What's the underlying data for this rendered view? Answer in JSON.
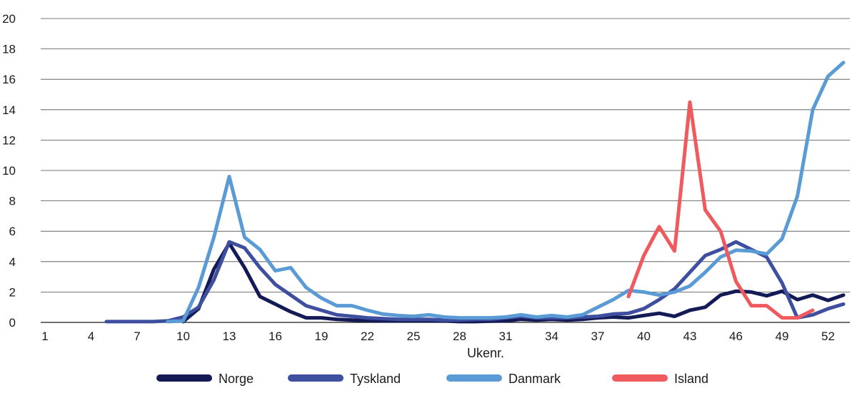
{
  "chart_data": {
    "type": "line",
    "title": "",
    "xlabel": "Ukenr.",
    "ylabel": "",
    "xlim": [
      1,
      53
    ],
    "ylim": [
      0,
      20
    ],
    "x_ticks": [
      "1",
      "4",
      "7",
      "10",
      "13",
      "16",
      "19",
      "22",
      "25",
      "28",
      "31",
      "34",
      "37",
      "40",
      "43",
      "46",
      "49",
      "52"
    ],
    "y_ticks": [
      "0",
      "2",
      "4",
      "6",
      "8",
      "10",
      "12",
      "14",
      "16",
      "18",
      "20"
    ],
    "grid": "horizontal",
    "legend_position": "bottom",
    "series": [
      {
        "name": "Norge",
        "color": "#141a55",
        "points": [
          [
            10,
            0.05
          ],
          [
            11,
            0.9
          ],
          [
            12,
            3.5
          ],
          [
            13,
            5.2
          ],
          [
            14,
            3.6
          ],
          [
            15,
            1.7
          ],
          [
            16,
            1.2
          ],
          [
            17,
            0.7
          ],
          [
            18,
            0.3
          ],
          [
            19,
            0.3
          ],
          [
            20,
            0.2
          ],
          [
            21,
            0.15
          ],
          [
            22,
            0.12
          ],
          [
            23,
            0.1
          ],
          [
            24,
            0.1
          ],
          [
            25,
            0.1
          ],
          [
            26,
            0.1
          ],
          [
            27,
            0.1
          ],
          [
            28,
            0.05
          ],
          [
            29,
            0.05
          ],
          [
            30,
            0.08
          ],
          [
            31,
            0.1
          ],
          [
            32,
            0.2
          ],
          [
            33,
            0.15
          ],
          [
            34,
            0.2
          ],
          [
            35,
            0.15
          ],
          [
            36,
            0.2
          ],
          [
            37,
            0.3
          ],
          [
            38,
            0.35
          ],
          [
            39,
            0.3
          ],
          [
            40,
            0.45
          ],
          [
            41,
            0.6
          ],
          [
            42,
            0.4
          ],
          [
            43,
            0.8
          ],
          [
            44,
            1.0
          ],
          [
            45,
            1.8
          ],
          [
            46,
            2.05
          ],
          [
            47,
            2.0
          ],
          [
            48,
            1.75
          ],
          [
            49,
            2.05
          ],
          [
            50,
            1.5
          ],
          [
            51,
            1.8
          ],
          [
            52,
            1.45
          ],
          [
            53,
            1.8
          ]
        ]
      },
      {
        "name": "Tyskland",
        "color": "#3d4f9e",
        "points": [
          [
            5,
            0.05
          ],
          [
            6,
            0.05
          ],
          [
            7,
            0.05
          ],
          [
            8,
            0.05
          ],
          [
            9,
            0.1
          ],
          [
            10,
            0.35
          ],
          [
            11,
            1.0
          ],
          [
            12,
            2.8
          ],
          [
            13,
            5.3
          ],
          [
            14,
            4.9
          ],
          [
            15,
            3.6
          ],
          [
            16,
            2.5
          ],
          [
            17,
            1.8
          ],
          [
            18,
            1.1
          ],
          [
            19,
            0.8
          ],
          [
            20,
            0.5
          ],
          [
            21,
            0.4
          ],
          [
            22,
            0.3
          ],
          [
            23,
            0.25
          ],
          [
            24,
            0.2
          ],
          [
            25,
            0.2
          ],
          [
            26,
            0.2
          ],
          [
            27,
            0.15
          ],
          [
            28,
            0.15
          ],
          [
            29,
            0.2
          ],
          [
            30,
            0.2
          ],
          [
            31,
            0.3
          ],
          [
            32,
            0.4
          ],
          [
            33,
            0.3
          ],
          [
            34,
            0.3
          ],
          [
            35,
            0.3
          ],
          [
            36,
            0.35
          ],
          [
            37,
            0.4
          ],
          [
            38,
            0.55
          ],
          [
            39,
            0.6
          ],
          [
            40,
            0.9
          ],
          [
            41,
            1.5
          ],
          [
            42,
            2.2
          ],
          [
            43,
            3.3
          ],
          [
            44,
            4.4
          ],
          [
            45,
            4.8
          ],
          [
            46,
            5.3
          ],
          [
            47,
            4.8
          ],
          [
            48,
            4.3
          ],
          [
            49,
            2.6
          ],
          [
            50,
            0.3
          ],
          [
            51,
            0.5
          ],
          [
            52,
            0.9
          ],
          [
            53,
            1.2
          ]
        ]
      },
      {
        "name": "Danmark",
        "color": "#5b9bd5",
        "points": [
          [
            9,
            0.05
          ],
          [
            10,
            0.1
          ],
          [
            11,
            2.3
          ],
          [
            12,
            5.6
          ],
          [
            13,
            9.6
          ],
          [
            14,
            5.6
          ],
          [
            15,
            4.8
          ],
          [
            16,
            3.4
          ],
          [
            17,
            3.6
          ],
          [
            18,
            2.3
          ],
          [
            19,
            1.6
          ],
          [
            20,
            1.1
          ],
          [
            21,
            1.1
          ],
          [
            22,
            0.8
          ],
          [
            23,
            0.55
          ],
          [
            24,
            0.45
          ],
          [
            25,
            0.4
          ],
          [
            26,
            0.5
          ],
          [
            27,
            0.35
          ],
          [
            28,
            0.3
          ],
          [
            29,
            0.3
          ],
          [
            30,
            0.3
          ],
          [
            31,
            0.35
          ],
          [
            32,
            0.5
          ],
          [
            33,
            0.35
          ],
          [
            34,
            0.45
          ],
          [
            35,
            0.35
          ],
          [
            36,
            0.5
          ],
          [
            37,
            1.0
          ],
          [
            38,
            1.5
          ],
          [
            39,
            2.1
          ],
          [
            40,
            2.0
          ],
          [
            41,
            1.8
          ],
          [
            42,
            2.0
          ],
          [
            43,
            2.4
          ],
          [
            44,
            3.3
          ],
          [
            45,
            4.3
          ],
          [
            46,
            4.75
          ],
          [
            47,
            4.7
          ],
          [
            48,
            4.5
          ],
          [
            49,
            5.5
          ],
          [
            50,
            8.3
          ],
          [
            51,
            14.0
          ],
          [
            52,
            16.2
          ],
          [
            53,
            17.1
          ]
        ]
      },
      {
        "name": "Island",
        "color": "#ef5a5f",
        "points": [
          [
            39,
            1.7
          ],
          [
            40,
            4.4
          ],
          [
            41,
            6.3
          ],
          [
            42,
            4.7
          ],
          [
            43,
            14.5
          ],
          [
            44,
            7.4
          ],
          [
            45,
            6.0
          ],
          [
            46,
            2.7
          ],
          [
            47,
            1.1
          ],
          [
            48,
            1.1
          ],
          [
            49,
            0.3
          ],
          [
            50,
            0.3
          ],
          [
            51,
            0.8
          ]
        ]
      }
    ]
  }
}
